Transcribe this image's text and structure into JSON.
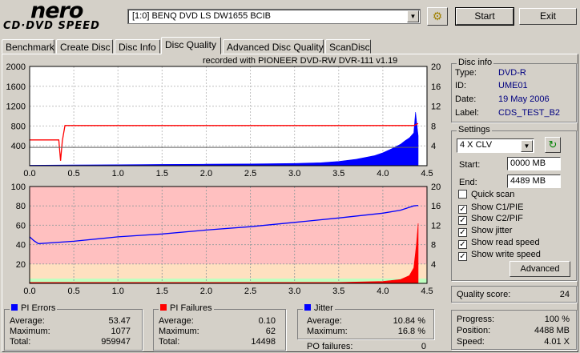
{
  "app": {
    "logo_top": "nero",
    "logo_bottom": "CD·DVD SPEED"
  },
  "drive": {
    "selected": "[1:0]  BENQ DVD LS DW1655 BCIB"
  },
  "buttons": {
    "start": "Start",
    "exit": "Exit"
  },
  "tabs": [
    {
      "label": "Benchmark",
      "active": false
    },
    {
      "label": "Create Disc",
      "active": false
    },
    {
      "label": "Disc Info",
      "active": false
    },
    {
      "label": "Disc Quality",
      "active": true
    },
    {
      "label": "Advanced Disc Quality",
      "active": false
    },
    {
      "label": "ScanDisc",
      "active": false
    }
  ],
  "chart_caption": "recorded with PIONEER DVD-RW  DVR-111  v1.19",
  "chart_data": [
    {
      "type": "area",
      "name": "PI Errors",
      "x_ticks": [
        "0.0",
        "0.5",
        "1.0",
        "1.5",
        "2.0",
        "2.5",
        "3.0",
        "3.5",
        "4.0",
        "4.5"
      ],
      "y_left_ticks": [
        "2000",
        "1600",
        "1200",
        "800",
        "400"
      ],
      "y_right_ticks": [
        "20",
        "16",
        "12",
        "8",
        "4"
      ],
      "xlim": [
        0,
        4.5
      ],
      "ylim_left": [
        0,
        2000
      ],
      "ylim_right": [
        0,
        20
      ],
      "grid": true,
      "series": [
        {
          "color": "#0000ff",
          "x": [
            0,
            0.5,
            1.0,
            1.5,
            2.0,
            2.5,
            3.0,
            3.3,
            3.5,
            3.7,
            3.9,
            4.0,
            4.1,
            4.2,
            4.25,
            4.3,
            4.35,
            4.37,
            4.4
          ],
          "y": [
            10,
            15,
            20,
            25,
            30,
            35,
            45,
            60,
            85,
            130,
            200,
            260,
            340,
            430,
            500,
            560,
            660,
            1080,
            600
          ]
        },
        {
          "color": "#ff0000",
          "x": [
            0,
            0.33,
            0.35,
            0.37,
            0.4,
            1.0,
            2.0,
            3.0,
            4.0,
            4.35,
            4.4
          ],
          "y": [
            5.2,
            5.2,
            1.0,
            5.0,
            8.1,
            8.1,
            8.1,
            8.1,
            8.1,
            8.1,
            8.5
          ]
        },
        {
          "color": "#606060",
          "x": [
            0,
            4.4
          ],
          "y": [
            3.7,
            3.7
          ]
        }
      ]
    },
    {
      "type": "area",
      "name": "PI Failures",
      "x_ticks": [
        "0.0",
        "0.5",
        "1.0",
        "1.5",
        "2.0",
        "2.5",
        "3.0",
        "3.5",
        "4.0",
        "4.5"
      ],
      "y_left_ticks": [
        "100",
        "80",
        "60",
        "40",
        "20"
      ],
      "y_right_ticks": [
        "20",
        "16",
        "12",
        "8",
        "4"
      ],
      "xlim": [
        0,
        4.5
      ],
      "ylim_left": [
        0,
        100
      ],
      "ylim_right": [
        0,
        20
      ],
      "grid": true,
      "series": [
        {
          "color": "#ff0000",
          "x": [
            0,
            0.5,
            1.0,
            1.5,
            2.0,
            2.5,
            3.0,
            3.5,
            4.0,
            4.2,
            4.3,
            4.35,
            4.38,
            4.4
          ],
          "y": [
            1,
            1,
            1,
            1,
            1,
            1,
            1,
            1,
            2,
            4,
            8,
            16,
            40,
            62
          ]
        },
        {
          "color": "#0000ff",
          "x": [
            0,
            0.05,
            0.1,
            0.5,
            1.0,
            1.5,
            2.0,
            2.5,
            3.0,
            3.5,
            4.0,
            4.2,
            4.35,
            4.4
          ],
          "y": [
            9.6,
            8.8,
            8.2,
            8.7,
            9.6,
            10.2,
            11.0,
            11.7,
            12.6,
            13.5,
            14.5,
            15.1,
            16.0,
            16.1
          ]
        }
      ],
      "bands": [
        {
          "from": 0,
          "to": 5,
          "color": "#c0ffc0"
        },
        {
          "from": 5,
          "to": 20,
          "color": "#ffe0c0"
        },
        {
          "from": 20,
          "to": 100,
          "color": "#ffc0c0"
        }
      ]
    }
  ],
  "disc_info": {
    "title": "Disc info",
    "rows": [
      {
        "label": "Type:",
        "value": "DVD-R"
      },
      {
        "label": "ID:",
        "value": "UME01"
      },
      {
        "label": "Date:",
        "value": "19 May 2006"
      },
      {
        "label": "Label:",
        "value": "CDS_TEST_B2"
      }
    ]
  },
  "settings": {
    "title": "Settings",
    "speed": "4 X CLV",
    "start_label": "Start:",
    "start_value": "0000 MB",
    "end_label": "End:",
    "end_value": "4489 MB",
    "checks": [
      {
        "label": "Quick scan",
        "checked": false
      },
      {
        "label": "Show C1/PIE",
        "checked": true
      },
      {
        "label": "Show C2/PIF",
        "checked": true
      },
      {
        "label": "Show jitter",
        "checked": true
      },
      {
        "label": "Show read speed",
        "checked": true
      },
      {
        "label": "Show write speed",
        "checked": true
      }
    ],
    "advanced": "Advanced"
  },
  "quality": {
    "label": "Quality score:",
    "value": "24"
  },
  "progress": {
    "rows": [
      {
        "label": "Progress:",
        "value": "100 %"
      },
      {
        "label": "Position:",
        "value": "4488 MB"
      },
      {
        "label": "Speed:",
        "value": "4.01 X"
      }
    ]
  },
  "pi_errors": {
    "title": "PI Errors",
    "color": "#0000ff",
    "rows": [
      {
        "label": "Average:",
        "value": "53.47"
      },
      {
        "label": "Maximum:",
        "value": "1077"
      },
      {
        "label": "Total:",
        "value": "959947"
      }
    ]
  },
  "pi_failures": {
    "title": "PI Failures",
    "color": "#ff0000",
    "rows": [
      {
        "label": "Average:",
        "value": "0.10"
      },
      {
        "label": "Maximum:",
        "value": "62"
      },
      {
        "label": "Total:",
        "value": "14498"
      }
    ]
  },
  "jitter": {
    "title": "Jitter",
    "color": "#0000ff",
    "rows": [
      {
        "label": "Average:",
        "value": "10.84 %"
      },
      {
        "label": "Maximum:",
        "value": "16.8 %"
      }
    ]
  },
  "po_failures": {
    "label": "PO failures:",
    "value": "0"
  }
}
